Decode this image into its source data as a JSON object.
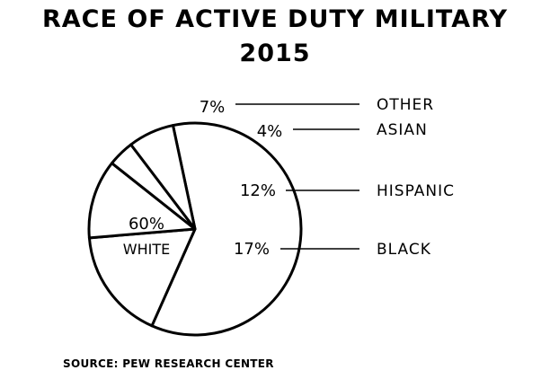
{
  "chart_data": {
    "type": "pie",
    "title": "RACE OF ACTIVE DUTY MILITARY",
    "subtitle": "2015",
    "slices": [
      {
        "label": "WHITE",
        "value": 60,
        "value_label": "60%"
      },
      {
        "label": "BLACK",
        "value": 17,
        "value_label": "17%"
      },
      {
        "label": "HISPANIC",
        "value": 12,
        "value_label": "12%"
      },
      {
        "label": "ASIAN",
        "value": 4,
        "value_label": "4%"
      },
      {
        "label": "OTHER",
        "value": 7,
        "value_label": "7%"
      }
    ],
    "source": "SOURCE: PEW RESEARCH CENTER"
  }
}
